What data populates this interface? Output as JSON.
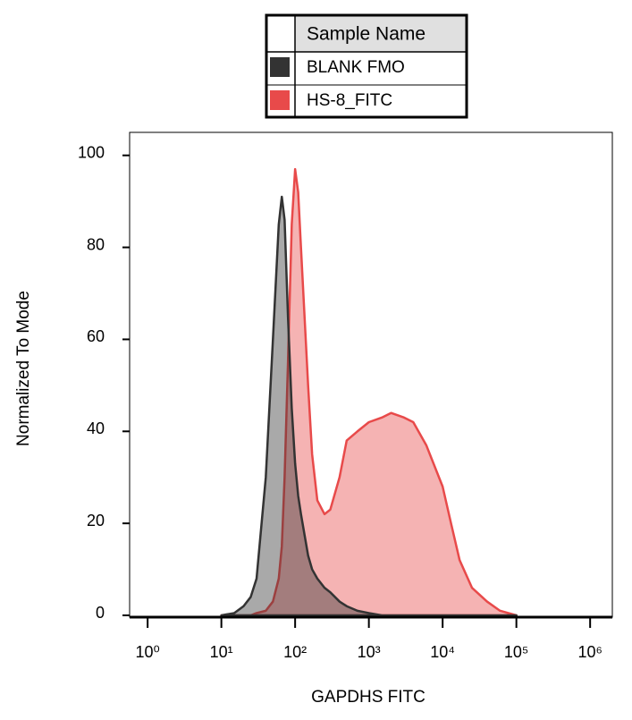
{
  "chart_data": {
    "type": "area",
    "x_label": "GAPDHS FITC",
    "y_label": "Normalized To Mode",
    "legend_title": "Sample Name",
    "xscale": "log",
    "xlim": [
      0.57,
      2000000
    ],
    "ylim": [
      0,
      105
    ],
    "xticks": [
      {
        "value": 1,
        "label": "10⁰"
      },
      {
        "value": 10,
        "label": "10¹"
      },
      {
        "value": 100,
        "label": "10²"
      },
      {
        "value": 1000,
        "label": "10³"
      },
      {
        "value": 10000,
        "label": "10⁴"
      },
      {
        "value": 100000,
        "label": "10⁵"
      },
      {
        "value": 1000000,
        "label": "10⁶"
      }
    ],
    "yticks": [
      0,
      20,
      40,
      60,
      80,
      100
    ],
    "x": [
      10,
      15,
      20,
      25,
      30,
      40,
      50,
      60,
      66,
      72,
      80,
      90,
      100,
      110,
      120,
      150,
      170,
      200,
      250,
      300,
      400,
      500,
      700,
      1000,
      1500,
      2000,
      3000,
      4000,
      6000,
      10000,
      13000,
      17000,
      25000,
      40000,
      60000,
      100000
    ],
    "series": [
      {
        "name": "HS-8_FITC",
        "color": "#e84a4a",
        "values": [
          0,
          0,
          0,
          0,
          0.5,
          1,
          3,
          8,
          15,
          30,
          55,
          85,
          97,
          92,
          80,
          50,
          35,
          25,
          22,
          23,
          30,
          38,
          40,
          42,
          43,
          44,
          43,
          42,
          37,
          28,
          20,
          12,
          6,
          3,
          1,
          0
        ]
      },
      {
        "name": "BLANK FMO",
        "color": "#333333",
        "values": [
          0,
          0.5,
          2,
          4,
          8,
          30,
          60,
          85,
          91,
          86,
          65,
          45,
          33,
          26,
          22,
          13,
          10,
          8,
          6,
          5,
          3,
          2,
          1,
          0.5,
          0,
          0,
          0,
          0,
          0,
          0,
          0,
          0,
          0,
          0,
          0,
          0
        ]
      }
    ]
  }
}
